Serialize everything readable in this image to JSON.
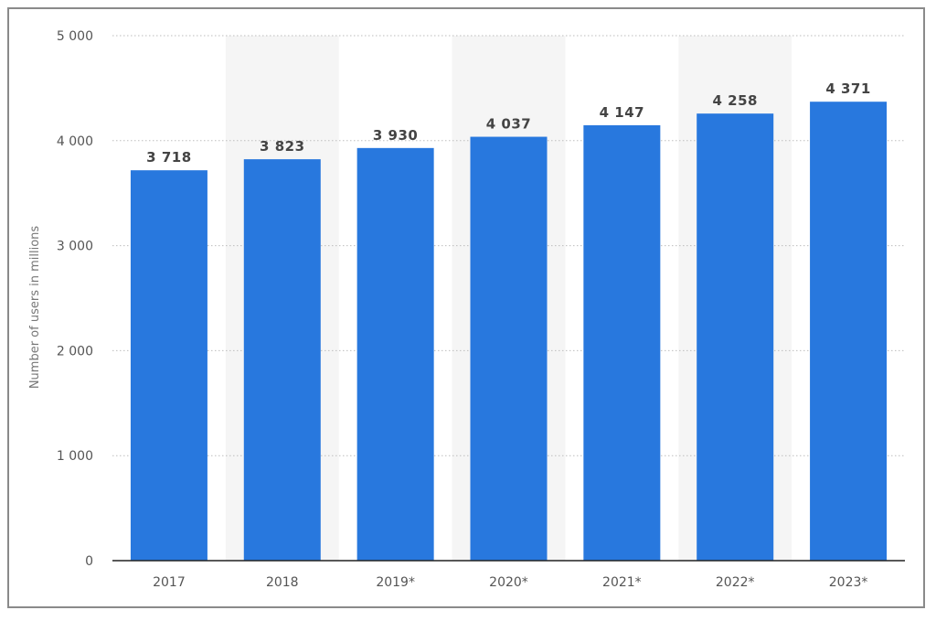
{
  "chart_data": {
    "type": "bar",
    "categories": [
      "2017",
      "2018",
      "2019*",
      "2020*",
      "2021*",
      "2022*",
      "2023*"
    ],
    "values": [
      3718,
      3823,
      3930,
      4037,
      4147,
      4258,
      4371
    ],
    "value_labels": [
      "3 718",
      "3 823",
      "3 930",
      "4 037",
      "4 147",
      "4 258",
      "4 371"
    ],
    "title": "",
    "xlabel": "",
    "ylabel": "Number of users in millions",
    "ylim": [
      0,
      5000
    ],
    "yticks": [
      0,
      1000,
      2000,
      3000,
      4000,
      5000
    ],
    "ytick_labels": [
      "0",
      "1 000",
      "2 000",
      "3 000",
      "4 000",
      "5 000"
    ],
    "grid": true,
    "legend": "none",
    "bar_color": "#2878de",
    "band_color": "#f5f5f5"
  }
}
